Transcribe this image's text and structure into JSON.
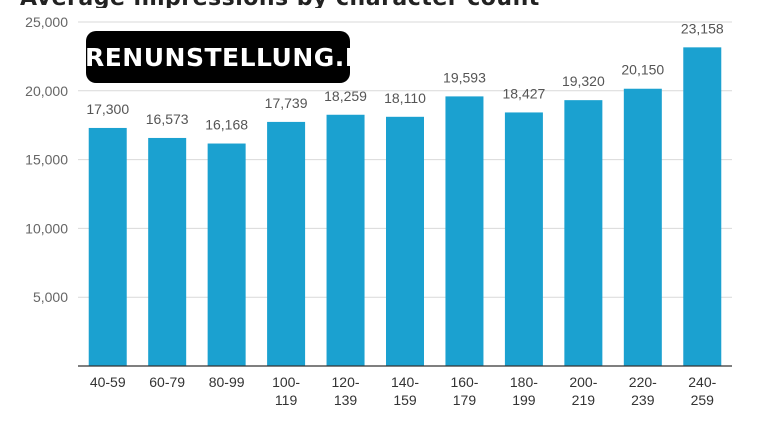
{
  "chart_data": {
    "type": "bar",
    "title": "Average impressions by character count",
    "categories": [
      "40-59",
      "60-79",
      "80-99",
      "100-119",
      "120-139",
      "140-159",
      "160-179",
      "180-199",
      "200-219",
      "220-239",
      "240-259"
    ],
    "category_lines": [
      [
        "40-59"
      ],
      [
        "60-79"
      ],
      [
        "80-99"
      ],
      [
        "100-",
        "119"
      ],
      [
        "120-",
        "139"
      ],
      [
        "140-",
        "159"
      ],
      [
        "160-",
        "179"
      ],
      [
        "180-",
        "199"
      ],
      [
        "200-",
        "219"
      ],
      [
        "220-",
        "239"
      ],
      [
        "240-",
        "259"
      ]
    ],
    "values": [
      17300,
      16573,
      16168,
      17739,
      18259,
      18110,
      19593,
      18427,
      19320,
      20150,
      23158
    ],
    "value_labels": [
      "17,300",
      "16,573",
      "16,168",
      "17,739",
      "18,259",
      "18,110",
      "19,593",
      "18,427",
      "19,320",
      "20,150",
      "23,158"
    ],
    "yticks": [
      0,
      5000,
      10000,
      15000,
      20000,
      25000
    ],
    "ytick_labels": [
      "",
      "5,000",
      "10,000",
      "15,000",
      "20,000",
      "25,000"
    ],
    "ylim": [
      0,
      25000
    ],
    "xlabel": "",
    "ylabel": "",
    "grid": true,
    "bar_color": "#1ba1d0"
  },
  "watermark": {
    "text": "UHRENUNSTELLUNG.DE/"
  }
}
